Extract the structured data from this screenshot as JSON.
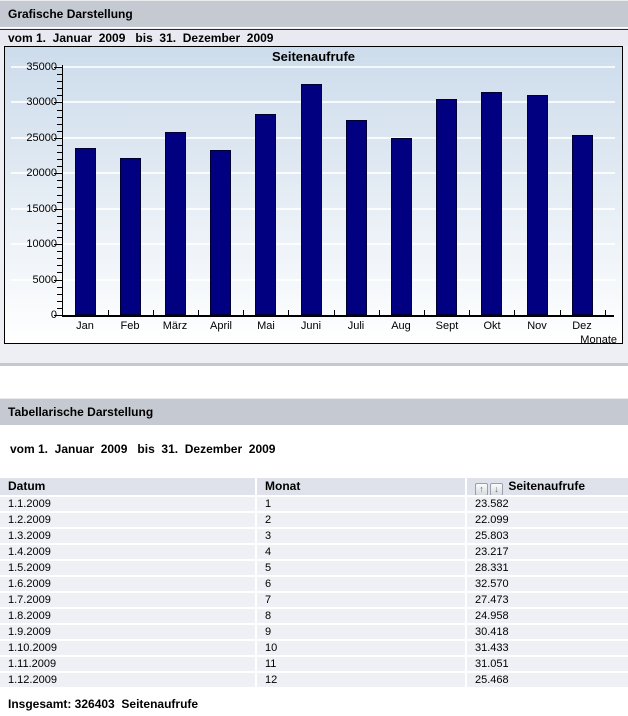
{
  "panel_graph": {
    "title": "Grafische Darstellung",
    "date_range": "vom 1.  Januar  2009   bis  31.  Dezember  2009"
  },
  "panel_table": {
    "title": "Tabellarische Darstellung",
    "date_range": "vom 1.  Januar  2009   bis  31.  Dezember  2009"
  },
  "chart_data": {
    "type": "bar",
    "title": "Seitenaufrufe",
    "categories": [
      "Jan",
      "Feb",
      "März",
      "April",
      "Mai",
      "Juni",
      "Juli",
      "Aug",
      "Sept",
      "Okt",
      "Nov",
      "Dez"
    ],
    "values": [
      23582,
      22099,
      25803,
      23217,
      28331,
      32570,
      27473,
      24958,
      30418,
      31433,
      31051,
      25468
    ],
    "xlabel": "Monate",
    "ylabel": "",
    "ylim": [
      0,
      35000
    ],
    "ytick_step": 5000,
    "minor_tick_step": 1000,
    "grid": true,
    "legend": "none",
    "bar_color": "#000080"
  },
  "table": {
    "columns": [
      "Datum",
      "Monat",
      "Seitenaufrufe"
    ],
    "sort_icons": {
      "ascending": "↑",
      "descending": "↓"
    },
    "rows": [
      [
        "1.1.2009",
        "1",
        "23.582"
      ],
      [
        "1.2.2009",
        "2",
        "22.099"
      ],
      [
        "1.3.2009",
        "3",
        "25.803"
      ],
      [
        "1.4.2009",
        "4",
        "23.217"
      ],
      [
        "1.5.2009",
        "5",
        "28.331"
      ],
      [
        "1.6.2009",
        "6",
        "32.570"
      ],
      [
        "1.7.2009",
        "7",
        "27.473"
      ],
      [
        "1.8.2009",
        "8",
        "24.958"
      ],
      [
        "1.9.2009",
        "9",
        "30.418"
      ],
      [
        "1.10.2009",
        "10",
        "31.433"
      ],
      [
        "1.11.2009",
        "11",
        "31.051"
      ],
      [
        "1.12.2009",
        "12",
        "25.468"
      ]
    ],
    "total_label": "Insgesamt: 326403  Seitenaufrufe"
  },
  "colors": {
    "titlebar_bg": "#c5c9d1",
    "panel_body_bg": "#edeff4",
    "datebar_bg": "#e9eaf1",
    "chart_bg_top": "#cddcec",
    "bar": "#000080",
    "table_header_bg": "#dfe2ea",
    "row_bg": "#eef0f5",
    "divider": "#c3c7d0"
  }
}
